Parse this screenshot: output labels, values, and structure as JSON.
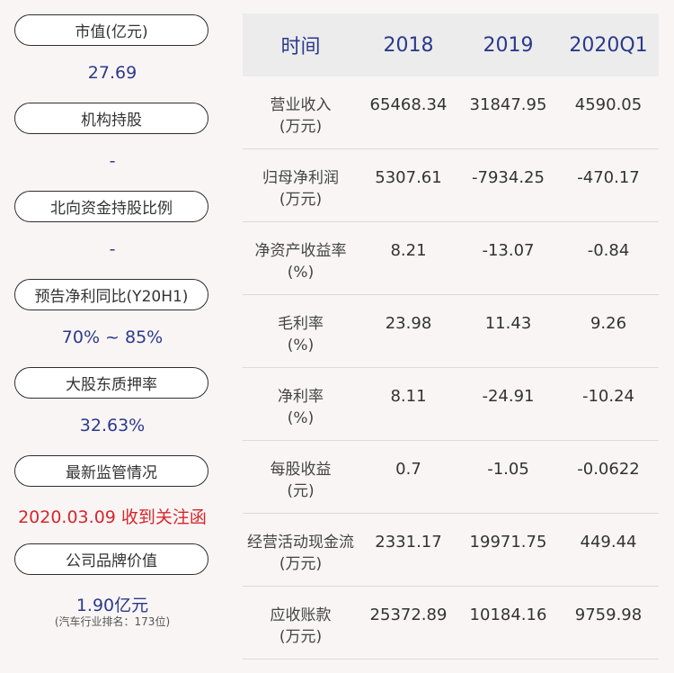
{
  "left_panel": {
    "items": [
      {
        "label": "市值(亿元)",
        "value": "27.69"
      },
      {
        "label": "机构持股",
        "value": "-"
      },
      {
        "label": "北向资金持股比例",
        "value": "-"
      },
      {
        "label": "预告净利同比(Y20H1)",
        "value": "70% ~ 85%"
      },
      {
        "label": "大股东质押率",
        "value": "32.63%"
      },
      {
        "label": "最新监管情况",
        "value": "2020.03.09 收到关注函"
      },
      {
        "label": "公司品牌价值",
        "value": "1.90亿元",
        "note": "(汽车行业排名：173位)"
      }
    ]
  },
  "table": {
    "headers": [
      "时间",
      "2018",
      "2019",
      "2020Q1"
    ],
    "rows": [
      {
        "label": "营业收入",
        "unit": "(万元)",
        "values": [
          "65468.34",
          "31847.95",
          "4590.05"
        ]
      },
      {
        "label": "归母净利润",
        "unit": "(万元)",
        "values": [
          "5307.61",
          "-7934.25",
          "-470.17"
        ]
      },
      {
        "label": "净资产收益率",
        "unit": "(%)",
        "values": [
          "8.21",
          "-13.07",
          "-0.84"
        ]
      },
      {
        "label": "毛利率",
        "unit": "(%)",
        "values": [
          "23.98",
          "11.43",
          "9.26"
        ]
      },
      {
        "label": "净利率",
        "unit": "(%)",
        "values": [
          "8.11",
          "-24.91",
          "-10.24"
        ]
      },
      {
        "label": "每股收益",
        "unit": "(元)",
        "values": [
          "0.7",
          "-1.05",
          "-0.0622"
        ]
      },
      {
        "label": "经营活动现金流",
        "unit": "(万元)",
        "values": [
          "2331.17",
          "19971.75",
          "449.44"
        ]
      },
      {
        "label": "应收账款",
        "unit": "(万元)",
        "values": [
          "25372.89",
          "10184.16",
          "9759.98"
        ]
      }
    ]
  },
  "colors": {
    "value_blue": "#2a3a8c",
    "alert_red": "#d7262b",
    "background": "#faf5f5"
  }
}
